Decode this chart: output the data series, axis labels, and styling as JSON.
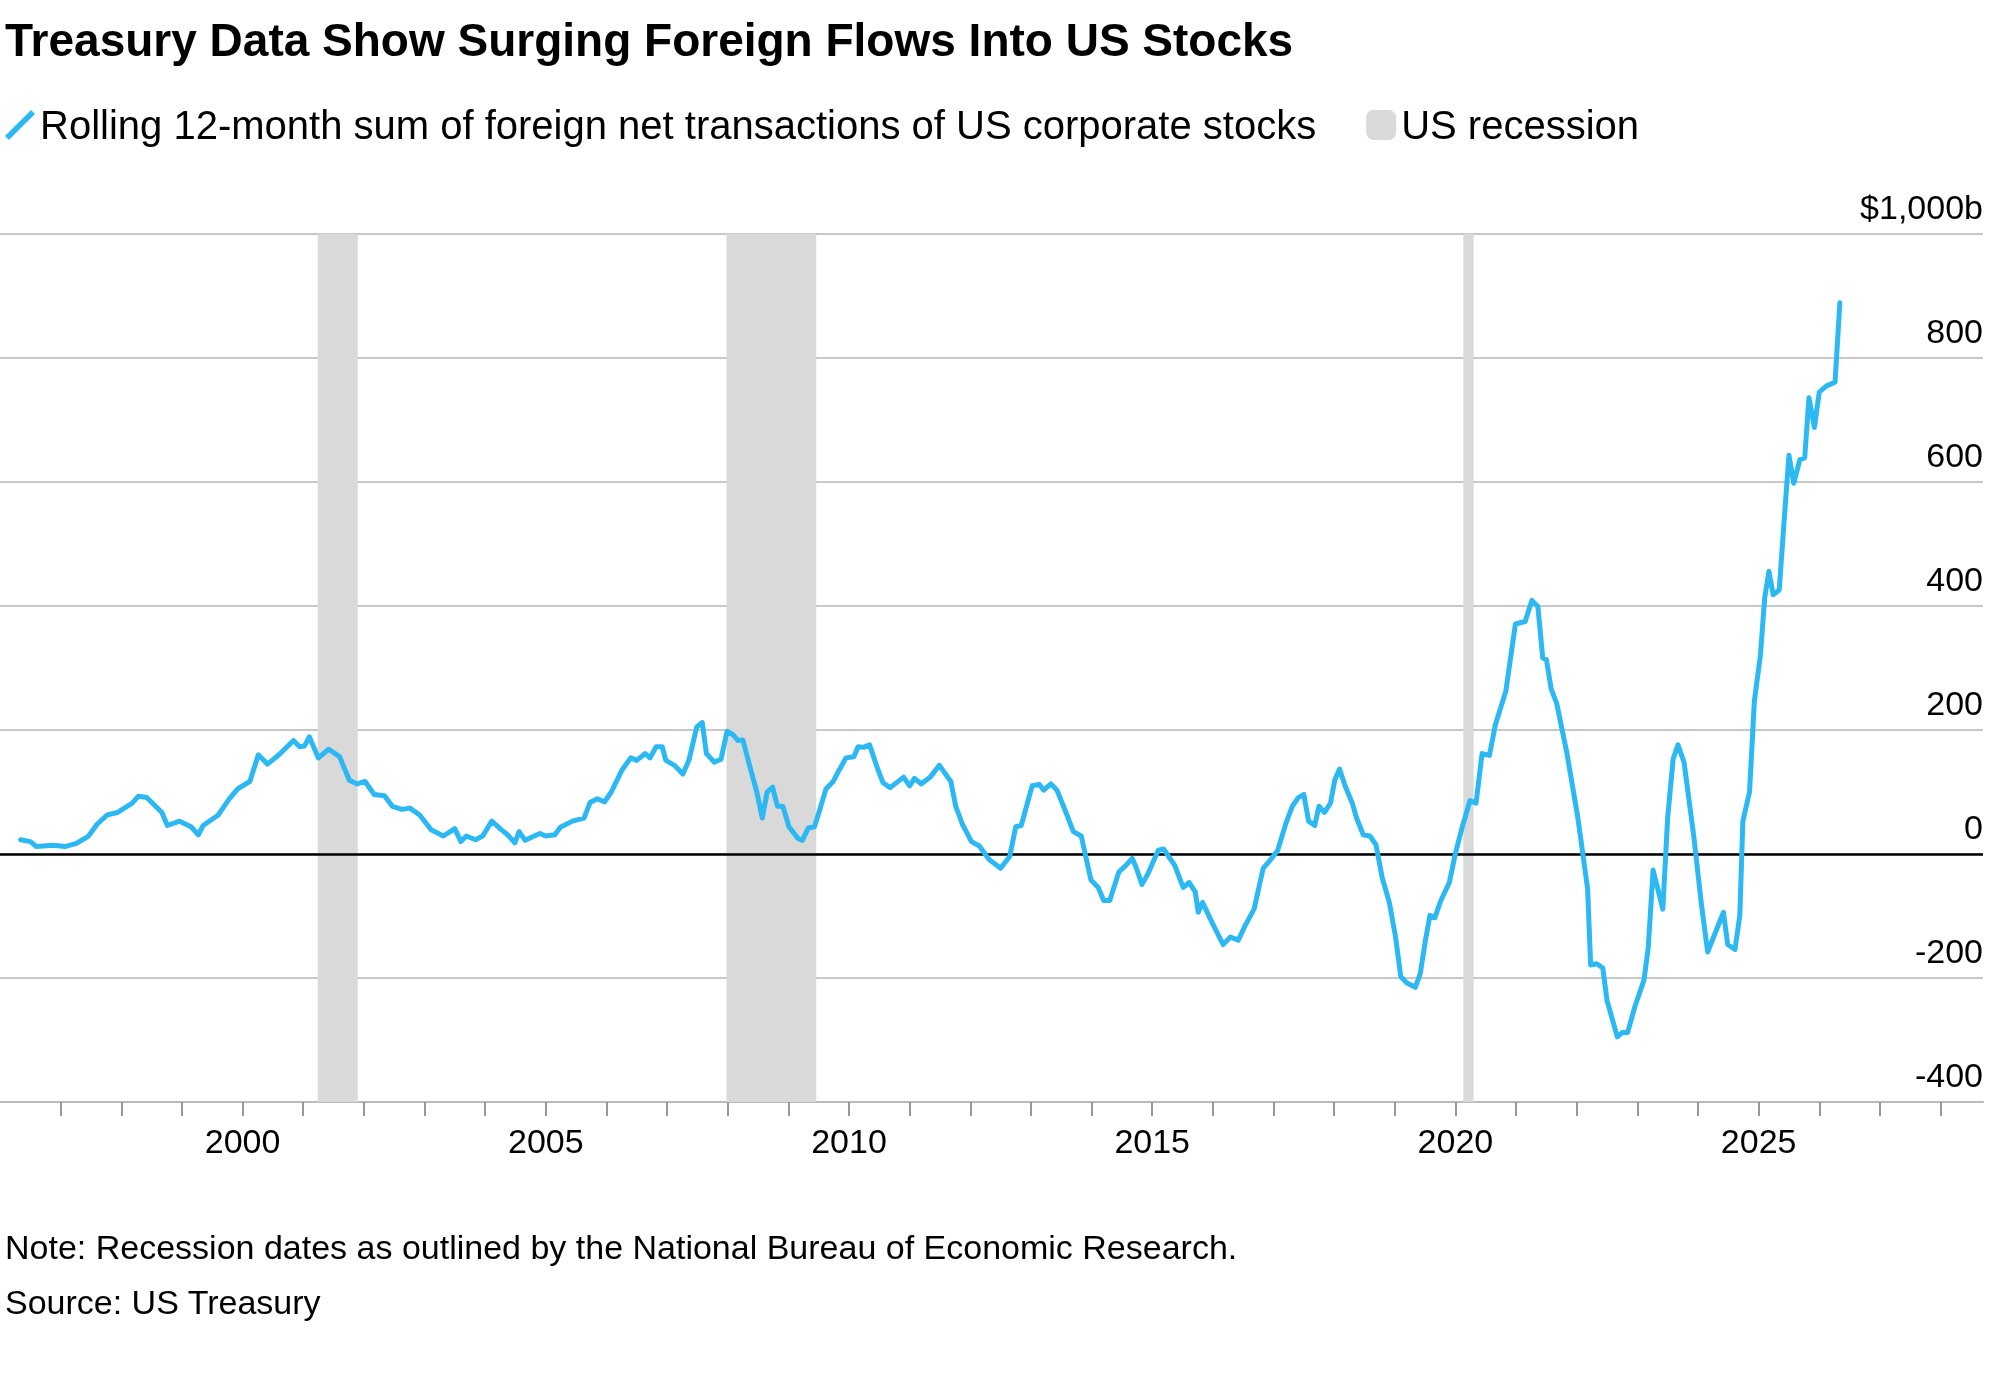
{
  "chart_data": {
    "type": "line",
    "title": "Treasury Data Show Surging Foreign Flows Into US Stocks",
    "annotations": [
      "Note: Recession dates as outlined by the National Bureau of Economic Research.",
      "Source: US Treasury"
    ],
    "series": [
      {
        "name": "Rolling 12-month sum of foreign net transactions of US corporate stocks",
        "color": "#2cb8f2",
        "x": [
          1996.34,
          1996.5,
          1996.6,
          1996.88,
          1997.07,
          1997.26,
          1997.46,
          1997.6,
          1997.77,
          1997.94,
          1998.18,
          1998.28,
          1998.42,
          1998.67,
          1998.76,
          1998.96,
          1999.15,
          1999.27,
          1999.35,
          1999.6,
          1999.78,
          1999.92,
          2000.12,
          2000.26,
          2000.41,
          2000.6,
          2000.84,
          2000.94,
          2001.02,
          2001.1,
          2001.25,
          2001.42,
          2001.6,
          2001.76,
          2001.89,
          2002.02,
          2002.17,
          2002.34,
          2002.47,
          2002.63,
          2002.76,
          2002.92,
          2003.11,
          2003.31,
          2003.5,
          2003.6,
          2003.69,
          2003.84,
          2003.96,
          2004.11,
          2004.27,
          2004.37,
          2004.49,
          2004.56,
          2004.66,
          2004.9,
          2005.0,
          2005.15,
          2005.24,
          2005.44,
          2005.63,
          2005.73,
          2005.85,
          2005.97,
          2006.08,
          2006.26,
          2006.4,
          2006.5,
          2006.64,
          2006.72,
          2006.82,
          2006.92,
          2006.98,
          2007.12,
          2007.26,
          2007.36,
          2007.49,
          2007.58,
          2007.65,
          2007.78,
          2007.89,
          2007.99,
          2008.09,
          2008.17,
          2008.25,
          2008.36,
          2008.48,
          2008.57,
          2008.65,
          2008.74,
          2008.82,
          2008.91,
          2009.01,
          2009.16,
          2009.23,
          2009.33,
          2009.43,
          2009.52,
          2009.62,
          2009.74,
          2009.83,
          2009.95,
          2010.08,
          2010.15,
          2010.24,
          2010.34,
          2010.47,
          2010.56,
          2010.68,
          2010.9,
          2011.0,
          2011.08,
          2011.19,
          2011.34,
          2011.49,
          2011.68,
          2011.76,
          2011.87,
          2012.02,
          2012.15,
          2012.31,
          2012.5,
          2012.65,
          2012.75,
          2012.84,
          2013.02,
          2013.14,
          2013.21,
          2013.33,
          2013.43,
          2013.57,
          2013.7,
          2013.83,
          2013.99,
          2014.11,
          2014.2,
          2014.3,
          2014.45,
          2014.57,
          2014.67,
          2014.74,
          2014.83,
          2014.93,
          2015.1,
          2015.19,
          2015.27,
          2015.37,
          2015.51,
          2015.61,
          2015.71,
          2015.76,
          2015.83,
          2016.0,
          2016.17,
          2016.29,
          2016.42,
          2016.53,
          2016.68,
          2016.83,
          2016.97,
          2017.07,
          2017.2,
          2017.31,
          2017.41,
          2017.5,
          2017.58,
          2017.68,
          2017.75,
          2017.84,
          2017.94,
          2018.01,
          2018.09,
          2018.18,
          2018.3,
          2018.37,
          2018.48,
          2018.59,
          2018.69,
          2018.79,
          2018.91,
          2019.01,
          2019.1,
          2019.2,
          2019.34,
          2019.42,
          2019.51,
          2019.58,
          2019.66,
          2019.76,
          2019.9,
          2020.0,
          2020.1,
          2020.24,
          2020.34,
          2020.44,
          2020.56,
          2020.66,
          2020.83,
          2020.99,
          2021.15,
          2021.26,
          2021.36,
          2021.44,
          2021.5,
          2021.58,
          2021.67,
          2021.84,
          2022.02,
          2022.18,
          2022.23,
          2022.33,
          2022.43,
          2022.5,
          2022.67,
          2022.75,
          2022.84,
          2022.96,
          2023.11,
          2023.18,
          2023.26,
          2023.42,
          2023.5,
          2023.59,
          2023.67,
          2023.77,
          2023.93,
          2024.06,
          2024.16,
          2024.42,
          2024.49,
          2024.61,
          2024.69,
          2024.74,
          2024.85,
          2024.93,
          2025.03,
          2025.1,
          2025.17,
          2025.24,
          2025.34,
          2025.42,
          2025.5,
          2025.58,
          2025.68,
          2025.76,
          2025.83,
          2025.92,
          2026.0,
          2026.12,
          2026.26,
          2026.34
        ],
        "values": [
          23,
          20,
          12,
          14,
          12,
          17,
          29,
          48,
          63,
          67,
          82,
          93,
          91,
          67,
          46,
          53,
          44,
          31,
          46,
          63,
          89,
          105,
          117,
          160,
          145,
          160,
          183,
          173,
          174,
          189,
          155,
          169,
          157,
          119,
          113,
          117,
          96,
          94,
          77,
          72,
          74,
          63,
          39,
          29,
          41,
          20,
          29,
          23,
          29,
          53,
          39,
          31,
          18,
          36,
          22,
          33,
          29,
          31,
          43,
          53,
          58,
          83,
          89,
          84,
          100,
          136,
          155,
          151,
          162,
          155,
          173,
          173,
          151,
          143,
          129,
          151,
          205,
          212,
          162,
          148,
          153,
          198,
          192,
          183,
          184,
          143,
          100,
          58,
          100,
          108,
          77,
          77,
          44,
          25,
          22,
          42,
          44,
          72,
          105,
          117,
          134,
          155,
          157,
          173,
          172,
          176,
          138,
          115,
          107,
          124,
          110,
          122,
          113,
          124,
          143,
          117,
          77,
          48,
          20,
          13,
          -9,
          -23,
          -4,
          44,
          46,
          110,
          112,
          103,
          113,
          103,
          69,
          36,
          29,
          -42,
          -54,
          -75,
          -75,
          -29,
          -18,
          -7,
          -23,
          -49,
          -32,
          6,
          8,
          -4,
          -18,
          -54,
          -46,
          -61,
          -94,
          -78,
          -113,
          -146,
          -134,
          -139,
          -116,
          -89,
          -23,
          -7,
          6,
          48,
          77,
          91,
          96,
          53,
          46,
          77,
          67,
          82,
          119,
          137,
          110,
          82,
          58,
          31,
          29,
          15,
          -37,
          -78,
          -132,
          -198,
          -208,
          -215,
          -193,
          -137,
          -99,
          -103,
          -75,
          -46,
          1,
          39,
          86,
          82,
          162,
          159,
          209,
          262,
          371,
          375,
          409,
          399,
          316,
          314,
          266,
          243,
          162,
          58,
          -56,
          -179,
          -177,
          -184,
          -236,
          -295,
          -288,
          -288,
          -246,
          -203,
          -151,
          -26,
          -89,
          58,
          153,
          176,
          148,
          29,
          -84,
          -158,
          -94,
          -146,
          -154,
          -99,
          53,
          100,
          247,
          321,
          413,
          456,
          418,
          426,
          537,
          643,
          598,
          636,
          639,
          736,
          688,
          745,
          755,
          761,
          889
        ]
      }
    ],
    "xlim": [
      1996,
      2028.7
    ],
    "xticks": [
      {
        "value": 1997,
        "label": null
      },
      {
        "value": 1998,
        "label": null
      },
      {
        "value": 1999,
        "label": null
      },
      2000,
      {
        "value": 2001,
        "label": null
      },
      {
        "value": 2002,
        "label": null
      },
      {
        "value": 2003,
        "label": null
      },
      {
        "value": 2004,
        "label": null
      },
      2005,
      {
        "value": 2006,
        "label": null
      },
      {
        "value": 2007,
        "label": null
      },
      {
        "value": 2008,
        "label": null
      },
      {
        "value": 2009,
        "label": null
      },
      2010,
      {
        "value": 2011,
        "label": null
      },
      {
        "value": 2012,
        "label": null
      },
      {
        "value": 2013,
        "label": null
      },
      {
        "value": 2014,
        "label": null
      },
      2015,
      {
        "value": 2016,
        "label": null
      },
      {
        "value": 2017,
        "label": null
      },
      {
        "value": 2018,
        "label": null
      },
      {
        "value": 2019,
        "label": null
      },
      2020,
      {
        "value": 2021,
        "label": null
      },
      {
        "value": 2022,
        "label": null
      },
      {
        "value": 2023,
        "label": null
      },
      {
        "value": 2024,
        "label": null
      },
      2025,
      {
        "value": 2026,
        "label": null
      },
      {
        "value": 2027,
        "label": null
      },
      {
        "value": 2028,
        "label": null
      }
    ],
    "ylim": [
      -400,
      1000
    ],
    "yticks": [
      -400,
      -200,
      0,
      200,
      400,
      600,
      800,
      {
        "value": 1000,
        "label": "$1,000b"
      }
    ],
    "bands": [
      {
        "axis": "x",
        "from": 2001.24,
        "to": 2001.9,
        "label": "US recession",
        "color": "#d9d9d9"
      },
      {
        "axis": "x",
        "from": 2007.98,
        "to": 2009.46,
        "color": "#d9d9d9"
      },
      {
        "axis": "x",
        "from": 2020.13,
        "to": 2020.3,
        "color": "#d9d9d9"
      }
    ],
    "ref_lines": [
      {
        "axis": "y",
        "value": 0,
        "color": "#000000"
      }
    ],
    "grid": "y",
    "legend": "top left",
    "marker": "none",
    "line_style": "solid"
  }
}
